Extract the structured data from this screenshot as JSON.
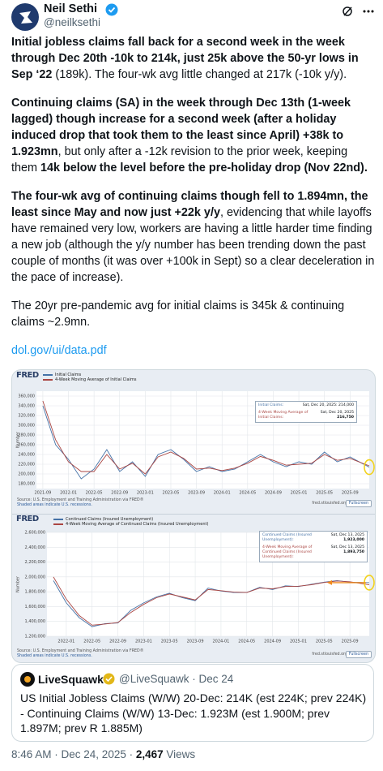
{
  "header": {
    "name": "Neil Sethi",
    "handle": "@neilksethi"
  },
  "paragraphs": [
    [
      {
        "text": "Initial jobless claims fall back for a second week in the week through Dec 20th -10k to 214k, just 25k above the 50-yr lows in Sep ‘22",
        "bold": true
      },
      {
        "text": " (189k). The four-wk avg little changed at 217k (-10k y/y).",
        "bold": false
      }
    ],
    [
      {
        "text": "Continuing claims (SA) in the week through Dec 13th (1-week lagged) though increase for a second week (after a holiday induced drop that took them to the least since April) +38k to 1.923mn",
        "bold": true
      },
      {
        "text": ", but only after a -12k revision to the prior week, keeping them ",
        "bold": false
      },
      {
        "text": "14k below the level before the pre-holiday drop (Nov 22nd).",
        "bold": true
      }
    ],
    [
      {
        "text": "The four-wk avg of continuing claims though fell to 1.894mn, the least since May and now just +22k y/y",
        "bold": true
      },
      {
        "text": ", evidencing that while layoffs have remained very low, workers are having a little harder time finding a new job (although the y/y number has been trending down the past couple of months (it was over +100k in Sept) so a clear deceleration in the pace of increase).",
        "bold": false
      }
    ],
    [
      {
        "text": "The 20yr pre-pandemic avg for initial claims is 345k & continuing claims ~2.9mn.",
        "bold": false
      }
    ]
  ],
  "link": "dol.gov/ui/data.pdf",
  "chart_data": [
    {
      "type": "line",
      "brand": "FRED",
      "ylabel": "Number",
      "x": [
        "2021-09",
        "2021-11",
        "2022-01",
        "2022-03",
        "2022-05",
        "2022-07",
        "2022-09",
        "2022-11",
        "2023-01",
        "2023-03",
        "2023-05",
        "2023-07",
        "2023-09",
        "2023-11",
        "2024-01",
        "2024-03",
        "2024-05",
        "2024-07",
        "2024-09",
        "2024-11",
        "2025-01",
        "2025-03",
        "2025-05",
        "2025-07",
        "2025-09",
        "2025-12"
      ],
      "series": [
        {
          "name": "Initial Claims",
          "color": "#4572a7",
          "values": [
            340000,
            260000,
            230000,
            190000,
            210000,
            250000,
            205000,
            225000,
            195000,
            240000,
            250000,
            230000,
            205000,
            215000,
            205000,
            210000,
            225000,
            240000,
            225000,
            215000,
            225000,
            220000,
            245000,
            225000,
            235000,
            214000
          ]
        },
        {
          "name": "4-Week Moving Average of Initial Claims",
          "color": "#aa4643",
          "values": [
            350000,
            270000,
            225000,
            205000,
            205000,
            240000,
            210000,
            222000,
            200000,
            235000,
            245000,
            232000,
            210000,
            212000,
            207000,
            212000,
            222000,
            236000,
            228000,
            218000,
            220000,
            222000,
            240000,
            228000,
            232000,
            216750
          ]
        }
      ],
      "xlim": [
        "2021-08",
        "2025-12"
      ],
      "xticks": [
        "2021-09",
        "2022-01",
        "2022-05",
        "2022-09",
        "2023-01",
        "2023-05",
        "2023-09",
        "2024-01",
        "2024-05",
        "2024-09",
        "2025-01",
        "2025-05",
        "2025-09"
      ],
      "ylim": [
        170000,
        370000
      ],
      "yticks": [
        {
          "value": 180000,
          "label": "180,000"
        },
        {
          "value": 200000,
          "label": "200,000"
        },
        {
          "value": 220000,
          "label": "220,000"
        },
        {
          "value": 240000,
          "label": "240,000"
        },
        {
          "value": 260000,
          "label": "260,000"
        },
        {
          "value": 280000,
          "label": "280,000"
        },
        {
          "value": 300000,
          "label": "300,000"
        },
        {
          "value": 320000,
          "label": "320,000"
        },
        {
          "value": 340000,
          "label": "340,000"
        },
        {
          "value": 360000,
          "label": "360,000"
        }
      ],
      "grid": true,
      "annotations": [
        {
          "label": "Initial Claims:",
          "date": "Sat, Dec 20, 2025: 214,000"
        },
        {
          "label": "4-Week Moving Average of Initial Claims:",
          "date": "Sat, Dec 20, 2025",
          "amount": "216,750"
        }
      ],
      "source": "Source: U.S. Employment and Training Administration via FRED®",
      "note": "Shaded areas indicate U.S. recessions.",
      "site": "fred.stlouisfed.org",
      "button": "Fullscreen"
    },
    {
      "type": "line",
      "brand": "FRED",
      "ylabel": "Number",
      "x": [
        "2021-11",
        "2022-01",
        "2022-03",
        "2022-05",
        "2022-07",
        "2022-09",
        "2022-11",
        "2023-01",
        "2023-03",
        "2023-05",
        "2023-07",
        "2023-09",
        "2023-11",
        "2024-01",
        "2024-03",
        "2024-05",
        "2024-07",
        "2024-09",
        "2024-11",
        "2025-01",
        "2025-03",
        "2025-05",
        "2025-07",
        "2025-09",
        "2025-12"
      ],
      "series": [
        {
          "name": "Continued Claims (Insured Unemployment)",
          "color": "#4572a7",
          "values": [
            1950000,
            1650000,
            1450000,
            1330000,
            1370000,
            1380000,
            1550000,
            1650000,
            1730000,
            1780000,
            1720000,
            1680000,
            1850000,
            1810000,
            1790000,
            1790000,
            1860000,
            1830000,
            1880000,
            1870000,
            1900000,
            1930000,
            1950000,
            1930000,
            1923000
          ]
        },
        {
          "name": "4-Week Moving Average of Continued Claims (Insured Unemployment)",
          "color": "#aa4643",
          "values": [
            2000000,
            1700000,
            1480000,
            1350000,
            1365000,
            1385000,
            1520000,
            1630000,
            1720000,
            1770000,
            1730000,
            1690000,
            1830000,
            1815000,
            1795000,
            1790000,
            1850000,
            1840000,
            1870000,
            1875000,
            1895000,
            1925000,
            1945000,
            1935000,
            1893750
          ]
        }
      ],
      "xlim": [
        "2021-10",
        "2025-12"
      ],
      "xticks": [
        "2022-01",
        "2022-05",
        "2022-09",
        "2023-01",
        "2023-05",
        "2023-09",
        "2024-01",
        "2024-05",
        "2024-09",
        "2025-01",
        "2025-05",
        "2025-09"
      ],
      "ylim": [
        1200000,
        2600000
      ],
      "yticks": [
        {
          "value": 1200000,
          "label": "1,200,000"
        },
        {
          "value": 1400000,
          "label": "1,400,000"
        },
        {
          "value": 1600000,
          "label": "1,600,000"
        },
        {
          "value": 1800000,
          "label": "1,800,000"
        },
        {
          "value": 2000000,
          "label": "2,000,000"
        },
        {
          "value": 2200000,
          "label": "2,200,000"
        },
        {
          "value": 2400000,
          "label": "2,400,000"
        },
        {
          "value": 2600000,
          "label": "2,600,000"
        }
      ],
      "grid": true,
      "annotations": [
        {
          "label": "Continued Claims (Insured Unemployment):",
          "date": "Sat, Dec 13, 2025",
          "amount": "1,923,000"
        },
        {
          "label": "4-Week Moving Average of Continued Claims (Insured Unemployment):",
          "date": "Sat, Dec 13, 2025",
          "amount": "1,893,750"
        }
      ],
      "source": "Source: U.S. Employment and Training Administration via FRED®",
      "note": "Shaded areas indicate U.S. recessions.",
      "site": "fred.stlouisfed.org",
      "button": "Fullscreen"
    }
  ],
  "quote": {
    "name": "LiveSquawk",
    "handle": "@LiveSquawk",
    "time": "Dec 24",
    "lines": [
      "US Initial Jobless Claims (W/W) 20-Dec: 214K (est 224K; prev 224K)",
      "- Continuing Claims (W/W) 13-Dec: 1.923M (est 1.900M; prev 1.897M; prev R 1.885M)"
    ]
  },
  "footer": {
    "time": "8:46 AM",
    "date": "Dec 24, 2025",
    "views": "2,467",
    "views_label": "Views"
  }
}
